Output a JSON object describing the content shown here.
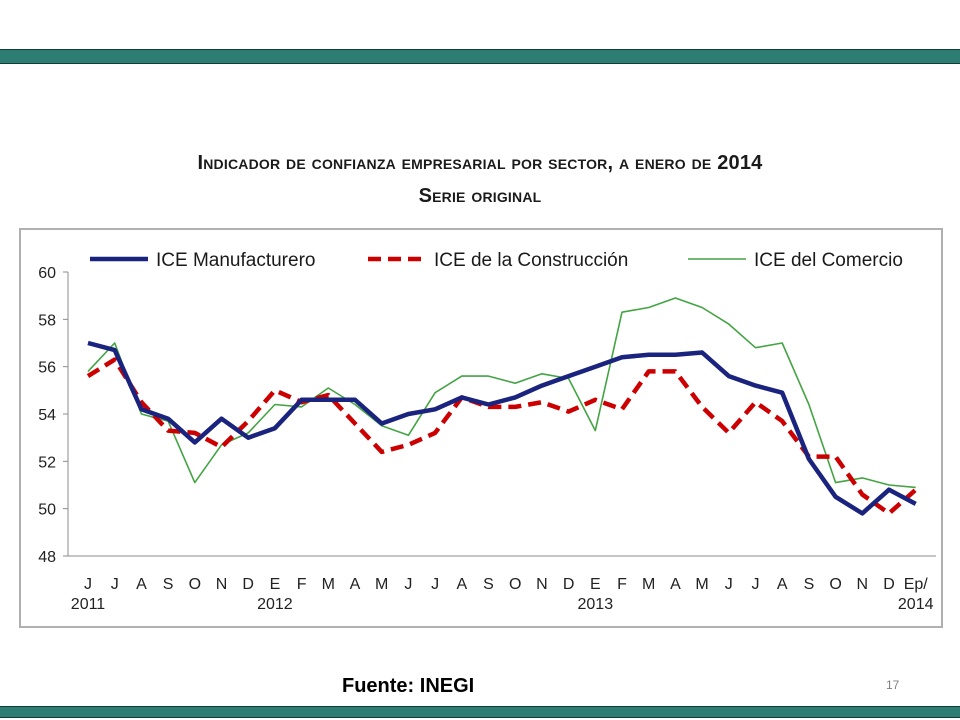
{
  "slide": {
    "title_line1": "Indicador de confianza empresarial por sector, a enero de 2014",
    "title_line2": "Serie original",
    "source": "Fuente: INEGI",
    "page_number": "17",
    "band_color": "#2e7d72"
  },
  "chart_data": {
    "type": "line",
    "title": "",
    "xlabel": "",
    "ylabel": "",
    "ylim": [
      48,
      60
    ],
    "yticks": [
      48,
      50,
      52,
      54,
      56,
      58,
      60
    ],
    "categories": [
      "J",
      "J",
      "A",
      "S",
      "O",
      "N",
      "D",
      "E",
      "F",
      "M",
      "A",
      "M",
      "J",
      "J",
      "A",
      "S",
      "O",
      "N",
      "D",
      "E",
      "F",
      "M",
      "A",
      "M",
      "J",
      "J",
      "A",
      "S",
      "O",
      "N",
      "D",
      "Ep/"
    ],
    "year_labels": [
      {
        "index": 0,
        "label": "2011"
      },
      {
        "index": 7,
        "label": "2012"
      },
      {
        "index": 19,
        "label": "2013"
      },
      {
        "index": 31,
        "label": "2014"
      }
    ],
    "legend": "top",
    "grid": false,
    "series": [
      {
        "name": "ICE Manufacturero",
        "color": "#1a237e",
        "style": "solid-thick",
        "values": [
          57.0,
          56.7,
          54.2,
          53.8,
          52.8,
          53.8,
          53.0,
          53.4,
          54.6,
          54.6,
          54.6,
          53.6,
          54.0,
          54.2,
          54.7,
          54.4,
          54.7,
          55.2,
          55.6,
          56.0,
          56.4,
          56.5,
          56.5,
          56.6,
          55.6,
          55.2,
          54.9,
          52.1,
          50.5,
          49.8,
          50.8,
          50.2
        ]
      },
      {
        "name": "ICE de la Construcción",
        "color": "#cc0000",
        "style": "dashed",
        "values": [
          55.6,
          56.3,
          54.5,
          53.3,
          53.2,
          52.6,
          53.7,
          55.0,
          54.5,
          54.8,
          53.6,
          52.4,
          52.7,
          53.2,
          54.7,
          54.3,
          54.3,
          54.5,
          54.1,
          54.6,
          54.2,
          55.8,
          55.8,
          54.3,
          53.2,
          54.5,
          53.7,
          52.2,
          52.2,
          50.6,
          49.8,
          50.8
        ]
      },
      {
        "name": "ICE del Comercio",
        "color": "#44a444",
        "style": "solid-thin",
        "values": [
          55.8,
          57.0,
          54.0,
          53.7,
          51.1,
          52.7,
          53.2,
          54.4,
          54.3,
          55.1,
          54.4,
          53.5,
          53.1,
          54.9,
          55.6,
          55.6,
          55.3,
          55.7,
          55.5,
          53.3,
          58.3,
          58.5,
          58.9,
          58.5,
          57.8,
          56.8,
          57.0,
          54.4,
          51.1,
          51.3,
          51.0,
          50.9
        ]
      }
    ]
  }
}
